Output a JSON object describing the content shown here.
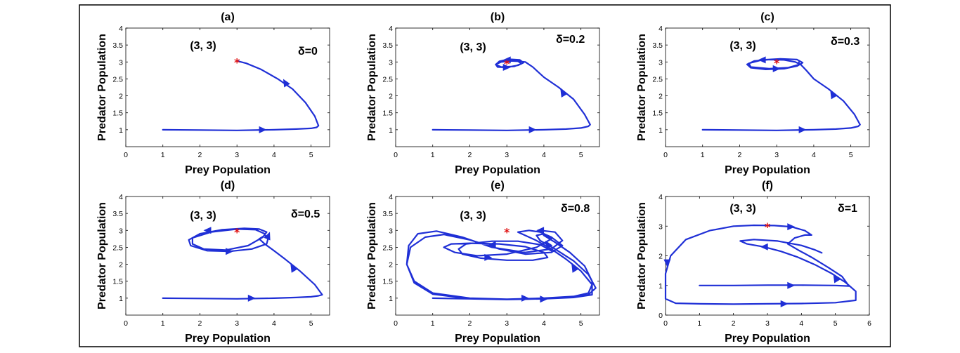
{
  "colors": {
    "trajectory": "#1f2fd6",
    "equilibrium": "#e01010",
    "frame": "#000000"
  },
  "chart_data": [
    {
      "type": "line",
      "panel": "(a)",
      "title": "(a)",
      "xlabel": "Prey Population",
      "ylabel": "Predator Population",
      "xlim": [
        0,
        5.5
      ],
      "ylim": [
        0.5,
        4
      ],
      "xticks": [
        "0",
        "1",
        "2",
        "3",
        "4",
        "5"
      ],
      "yticks": [
        "1",
        "1.5",
        "2",
        "2.5",
        "3",
        "3.5",
        "4"
      ],
      "xticks_v": [
        0,
        1,
        2,
        3,
        4,
        5
      ],
      "yticks_v": [
        1,
        1.5,
        2,
        2.5,
        3,
        3.5,
        4
      ],
      "equilibrium_label": "(3, 3)",
      "equilibrium": [
        3,
        3
      ],
      "delta_label": "δ=0",
      "series": [
        {
          "name": "trajectory",
          "x": [
            1,
            2,
            3,
            4,
            4.6,
            5,
            5.15,
            5.2,
            5.1,
            4.85,
            4.5,
            4.1,
            3.65,
            3.25,
            3.0
          ],
          "y": [
            1,
            0.99,
            0.98,
            1.0,
            1.02,
            1.04,
            1.07,
            1.12,
            1.4,
            1.8,
            2.2,
            2.5,
            2.78,
            2.96,
            3.03
          ]
        }
      ],
      "arrows_at": [
        [
          3.7,
          1.0,
          1,
          0
        ],
        [
          4.3,
          2.4,
          -0.6,
          1
        ]
      ]
    },
    {
      "type": "line",
      "panel": "(b)",
      "title": "(b)",
      "xlabel": "Prey Population",
      "ylabel": "Predator Population",
      "xlim": [
        0,
        5.5
      ],
      "ylim": [
        0.5,
        4
      ],
      "xticks": [
        "0",
        "1",
        "2",
        "3",
        "4",
        "5"
      ],
      "yticks": [
        "1",
        "1.5",
        "2",
        "2.5",
        "3",
        "3.5",
        "4"
      ],
      "xticks_v": [
        0,
        1,
        2,
        3,
        4,
        5
      ],
      "yticks_v": [
        1,
        1.5,
        2,
        2.5,
        3,
        3.5,
        4
      ],
      "equilibrium_label": "(3, 3)",
      "equilibrium": [
        3,
        2.95
      ],
      "delta_label": "δ=0.2",
      "series": [
        {
          "name": "trajectory",
          "x": [
            1,
            2,
            3,
            4,
            4.6,
            5,
            5.2,
            5.25,
            5.1,
            4.8,
            4.4,
            4.0,
            3.7,
            3.5,
            3.3,
            3.1,
            2.85,
            2.7,
            2.75,
            3.0,
            3.3,
            3.45,
            3.35,
            3.05,
            2.8,
            2.7,
            2.85,
            3.2,
            3.4,
            3.3
          ],
          "y": [
            1,
            0.99,
            0.98,
            1.0,
            1.02,
            1.05,
            1.1,
            1.15,
            1.45,
            1.9,
            2.25,
            2.55,
            2.85,
            3.0,
            3.02,
            3.03,
            3.0,
            2.93,
            2.85,
            2.84,
            2.9,
            2.98,
            3.06,
            3.08,
            3.02,
            2.92,
            2.85,
            2.87,
            2.95,
            3.02
          ]
        }
      ],
      "arrows_at": [
        [
          3.7,
          1.0,
          1,
          0
        ],
        [
          4.5,
          2.1,
          -0.6,
          1
        ],
        [
          3.0,
          2.84,
          1,
          0
        ],
        [
          3.0,
          3.06,
          -1,
          0
        ]
      ]
    },
    {
      "type": "line",
      "panel": "(c)",
      "title": "(c)",
      "xlabel": "Prey Population",
      "ylabel": "Predator Population",
      "xlim": [
        0,
        5.5
      ],
      "ylim": [
        0.5,
        4
      ],
      "xticks": [
        "0",
        "1",
        "2",
        "3",
        "4",
        "5"
      ],
      "yticks": [
        "1",
        "1.5",
        "2",
        "2.5",
        "3",
        "3.5",
        "4"
      ],
      "xticks_v": [
        0,
        1,
        2,
        3,
        4,
        5
      ],
      "yticks_v": [
        1,
        1.5,
        2,
        2.5,
        3,
        3.5,
        4
      ],
      "equilibrium_label": "(3, 3)",
      "equilibrium": [
        3,
        2.97
      ],
      "delta_label": "δ=0.3",
      "series": [
        {
          "name": "trajectory",
          "x": [
            1,
            2,
            3,
            4,
            4.6,
            5,
            5.2,
            5.25,
            5.1,
            4.8,
            4.4,
            4.0,
            3.8,
            3.65,
            3.5,
            3.2,
            2.8,
            2.4,
            2.2,
            2.3,
            2.7,
            3.2,
            3.55,
            3.7,
            3.55,
            3.1,
            2.6,
            2.25,
            2.3,
            2.8,
            3.3,
            3.6,
            3.6
          ],
          "y": [
            1,
            0.99,
            0.98,
            1.0,
            1.02,
            1.05,
            1.1,
            1.15,
            1.45,
            1.85,
            2.2,
            2.5,
            2.75,
            2.92,
            3.0,
            3.06,
            3.07,
            3.03,
            2.93,
            2.83,
            2.78,
            2.8,
            2.88,
            2.98,
            3.07,
            3.09,
            3.06,
            2.96,
            2.85,
            2.8,
            2.83,
            2.92,
            3.0
          ]
        }
      ],
      "arrows_at": [
        [
          3.7,
          1.0,
          1,
          0
        ],
        [
          4.5,
          2.05,
          -0.6,
          1
        ],
        [
          3.0,
          2.8,
          1,
          0
        ],
        [
          2.6,
          3.06,
          -1,
          0
        ]
      ]
    },
    {
      "type": "line",
      "panel": "(d)",
      "title": "(d)",
      "xlabel": "Prey Population",
      "ylabel": "Predator Population",
      "xlim": [
        0,
        5.5
      ],
      "ylim": [
        0.5,
        4
      ],
      "xticks": [
        "0",
        "1",
        "2",
        "3",
        "4",
        "5"
      ],
      "yticks": [
        "1",
        "1.5",
        "2",
        "2.5",
        "3",
        "3.5",
        "4"
      ],
      "xticks_v": [
        0,
        1,
        2,
        3,
        4,
        5
      ],
      "yticks_v": [
        1,
        1.5,
        2,
        2.5,
        3,
        3.5,
        4
      ],
      "equilibrium_label": "(3, 3)",
      "equilibrium": [
        3,
        2.95
      ],
      "delta_label": "δ=0.5",
      "series": [
        {
          "name": "trajectory",
          "x": [
            1,
            2,
            3,
            4,
            4.6,
            5,
            5.2,
            5.3,
            5.1,
            4.7,
            4.3,
            4.0,
            3.75,
            3.6,
            3.75,
            3.85,
            3.8,
            3.4,
            2.8,
            2.2,
            1.75,
            1.7,
            2.0,
            2.6,
            3.2,
            3.6,
            3.8,
            3.7,
            3.3,
            2.7,
            2.1,
            1.8,
            1.8,
            2.3,
            3.0,
            3.5,
            3.75
          ],
          "y": [
            1,
            0.99,
            0.98,
            1.0,
            1.02,
            1.04,
            1.07,
            1.1,
            1.4,
            1.8,
            2.15,
            2.4,
            2.6,
            2.75,
            2.85,
            2.8,
            2.6,
            2.45,
            2.38,
            2.4,
            2.55,
            2.72,
            2.9,
            3.02,
            3.06,
            3.04,
            2.95,
            2.8,
            2.55,
            2.42,
            2.45,
            2.6,
            2.78,
            2.95,
            3.04,
            3.02,
            2.9
          ]
        }
      ],
      "arrows_at": [
        [
          3.4,
          1.0,
          1,
          0
        ],
        [
          4.5,
          1.9,
          -0.6,
          1
        ],
        [
          2.8,
          2.38,
          1,
          0
        ],
        [
          2.2,
          3.0,
          -1,
          0
        ],
        [
          3.85,
          2.85,
          0.4,
          1
        ]
      ]
    },
    {
      "type": "line",
      "panel": "(e)",
      "title": "(e)",
      "xlabel": "Prey Population",
      "ylabel": "Predator Population",
      "xlim": [
        0,
        5.5
      ],
      "ylim": [
        0.5,
        4
      ],
      "xticks": [
        "0",
        "1",
        "2",
        "3",
        "4",
        "5"
      ],
      "yticks": [
        "1",
        "1.5",
        "2",
        "2.5",
        "3",
        "3.5",
        "4"
      ],
      "xticks_v": [
        0,
        1,
        2,
        3,
        4,
        5
      ],
      "yticks_v": [
        1,
        1.5,
        2,
        2.5,
        3,
        3.5,
        4
      ],
      "equilibrium_label": "(3, 3)",
      "equilibrium": [
        3,
        2.95
      ],
      "delta_label": "δ=0.8",
      "series": [
        {
          "name": "trajectory",
          "x": [
            1,
            2,
            3,
            4,
            4.8,
            5.2,
            5.3,
            5.0,
            4.6,
            4.2,
            3.8,
            3.5,
            3.3,
            3.6,
            3.9,
            4.2,
            4.5,
            4.2,
            3.5,
            2.8,
            2.0,
            1.3,
            0.8,
            0.4,
            0.3,
            0.5,
            1.0,
            2.0,
            3.0,
            4.0,
            4.8,
            5.3,
            5.3,
            5.1,
            4.7,
            4.3,
            4.0,
            3.9,
            4.3,
            4.5,
            4.2,
            3.5,
            2.6,
            1.8,
            1.1,
            0.6,
            0.35,
            0.3,
            0.5,
            1.0,
            2.0,
            3.0,
            4.0,
            4.8,
            5.2,
            5.4,
            5.2,
            4.8,
            4.3,
            3.9,
            3.8,
            4.0,
            4.2,
            3.8,
            3.0,
            2.2,
            1.6,
            1.3,
            1.5,
            2.0,
            2.8,
            3.5,
            4.0,
            4.1,
            3.7,
            3.0,
            2.3,
            1.8,
            1.7,
            1.9,
            2.6,
            3.3,
            3.9,
            4.2
          ],
          "y": [
            1,
            0.98,
            0.97,
            1.0,
            1.05,
            1.15,
            1.4,
            1.8,
            2.15,
            2.45,
            2.7,
            2.85,
            2.95,
            3.0,
            2.95,
            2.8,
            2.55,
            2.35,
            2.3,
            2.45,
            2.72,
            2.88,
            2.8,
            2.5,
            2.0,
            1.5,
            1.15,
            1.0,
            0.97,
            0.98,
            1.02,
            1.1,
            1.5,
            1.95,
            2.35,
            2.65,
            2.85,
            3.0,
            2.95,
            2.7,
            2.45,
            2.35,
            2.5,
            2.8,
            2.98,
            2.9,
            2.55,
            2.0,
            1.45,
            1.12,
            0.98,
            0.96,
            0.98,
            1.02,
            1.1,
            1.3,
            1.7,
            2.1,
            2.45,
            2.7,
            2.85,
            2.9,
            2.75,
            2.5,
            2.3,
            2.25,
            2.35,
            2.5,
            2.6,
            2.62,
            2.6,
            2.52,
            2.35,
            2.2,
            2.12,
            2.12,
            2.18,
            2.3,
            2.45,
            2.6,
            2.68,
            2.68,
            2.58,
            2.4
          ]
        }
      ],
      "arrows_at": [
        [
          3.5,
          1.0,
          1,
          0
        ],
        [
          4.0,
          0.97,
          1,
          0
        ],
        [
          4.8,
          1.9,
          -0.6,
          1
        ],
        [
          4.1,
          2.6,
          -0.6,
          1
        ],
        [
          2.6,
          2.58,
          -1,
          0
        ],
        [
          2.5,
          2.2,
          1,
          0
        ],
        [
          3.9,
          3.0,
          -1,
          0
        ]
      ]
    },
    {
      "type": "line",
      "panel": "(f)",
      "title": "(f)",
      "xlabel": "Prey Population",
      "ylabel": "Predator Population",
      "xlim": [
        0,
        6
      ],
      "ylim": [
        0,
        4
      ],
      "xticks": [
        "0",
        "1",
        "2",
        "3",
        "4",
        "5",
        "6"
      ],
      "yticks": [
        "0",
        "1",
        "2",
        "3",
        "4"
      ],
      "xticks_v": [
        0,
        1,
        2,
        3,
        4,
        5,
        6
      ],
      "yticks_v": [
        0,
        1,
        2,
        3,
        4
      ],
      "equilibrium_label": "(3, 3)",
      "equilibrium": [
        3,
        2.98
      ],
      "delta_label": "δ=1",
      "series": [
        {
          "name": "trajectory",
          "x": [
            1,
            2,
            3,
            4,
            5,
            5.4,
            5.2,
            4.8,
            4.3,
            3.9,
            3.6,
            3.8,
            4.1,
            4.3,
            4.1,
            3.7,
            3.2,
            2.6,
            2.0,
            1.3,
            0.6,
            0.15,
            0.0,
            0.0,
            0.0,
            0.3,
            1.0,
            2.0,
            3.0,
            4.0,
            5.0,
            5.6,
            5.6,
            5.3,
            4.9,
            4.4,
            3.9,
            3.4,
            2.9,
            2.4,
            2.2,
            2.6,
            3.3,
            4.0,
            4.4,
            4.6
          ],
          "y": [
            1.0,
            1.0,
            1.01,
            1.01,
            1.0,
            0.98,
            1.3,
            1.6,
            1.95,
            2.2,
            2.4,
            2.6,
            2.7,
            2.7,
            2.85,
            2.98,
            3.02,
            3.03,
            3.0,
            2.85,
            2.55,
            2.0,
            1.4,
            0.9,
            0.55,
            0.4,
            0.38,
            0.37,
            0.38,
            0.39,
            0.42,
            0.5,
            0.8,
            1.1,
            1.4,
            1.7,
            1.95,
            2.15,
            2.3,
            2.4,
            2.5,
            2.55,
            2.5,
            2.35,
            2.2,
            2.1
          ]
        }
      ],
      "arrows_at": [
        [
          3.7,
          1.0,
          1,
          0
        ],
        [
          3.5,
          0.38,
          1,
          0
        ],
        [
          5.0,
          1.25,
          -0.6,
          1
        ],
        [
          2.9,
          2.3,
          -1,
          0
        ],
        [
          3.7,
          2.98,
          1,
          0
        ],
        [
          0.05,
          1.75,
          0,
          -1
        ]
      ]
    }
  ]
}
